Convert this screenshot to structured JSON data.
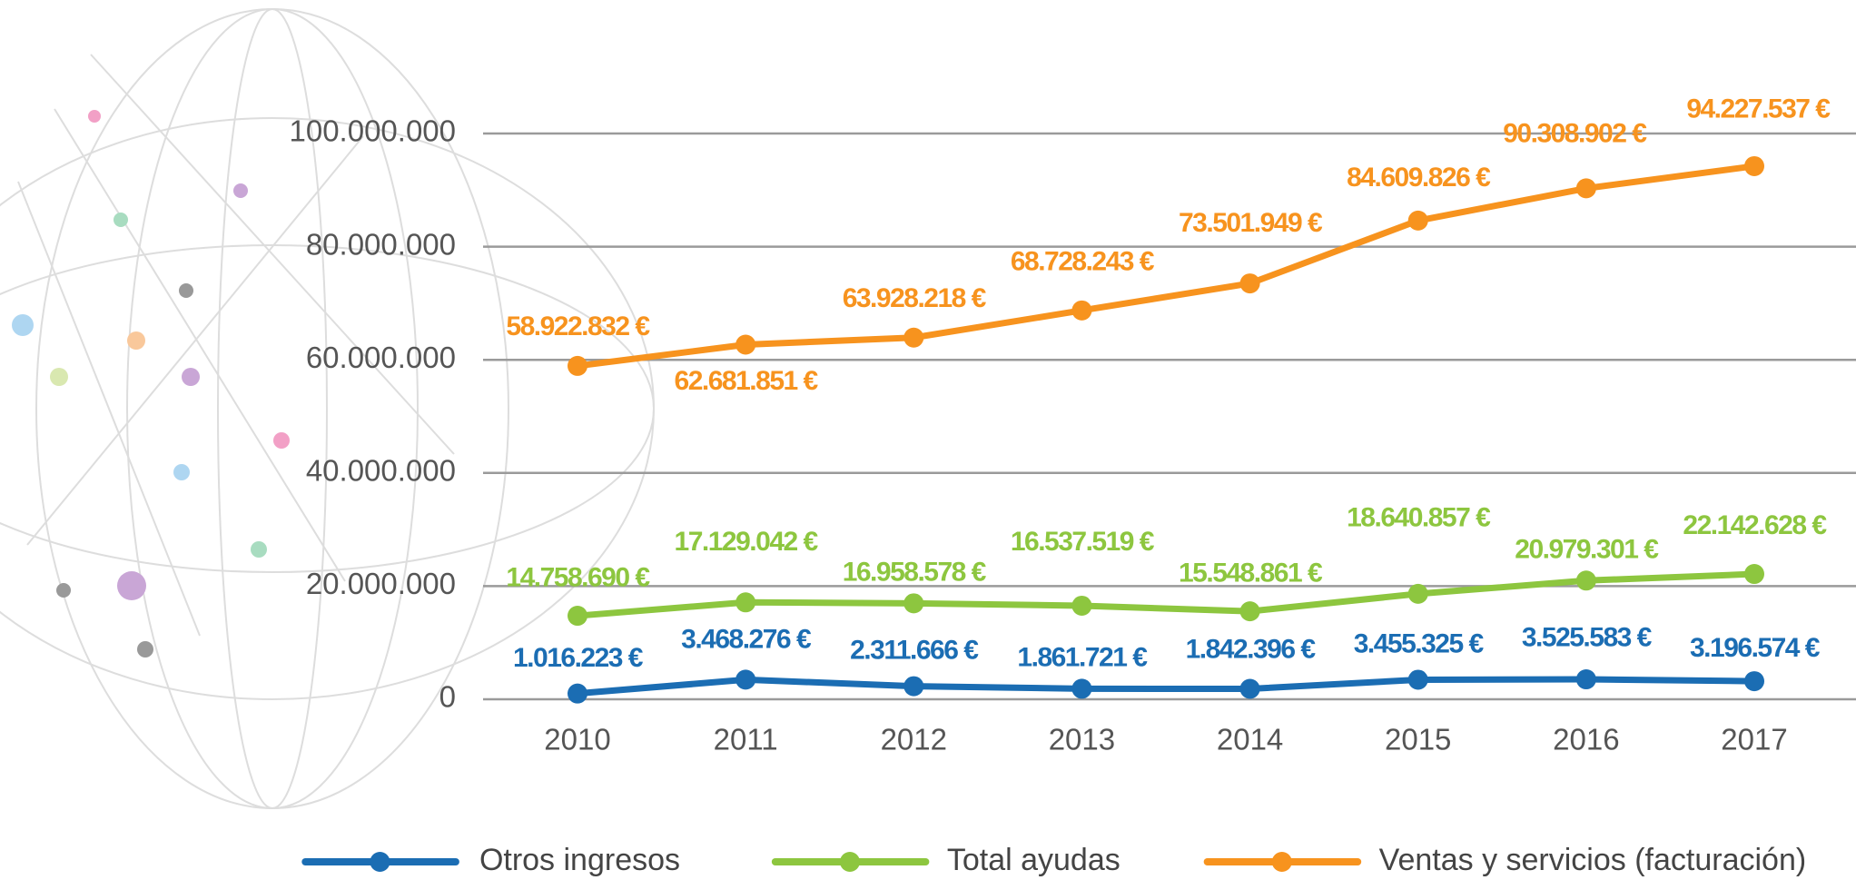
{
  "chart_data": {
    "type": "line",
    "categories": [
      "2010",
      "2011",
      "2012",
      "2013",
      "2014",
      "2015",
      "2016",
      "2017"
    ],
    "series": [
      {
        "name": "Otros ingresos",
        "color": "#1b6db3",
        "values": [
          1016223,
          3468276,
          2311666,
          1861721,
          1842396,
          3455325,
          3525583,
          3196574
        ],
        "value_labels": [
          "1.016.223 €",
          "3.468.276 €",
          "2.311.666 €",
          "1.861.721 €",
          "1.842.396 €",
          "3.455.325 €",
          "3.525.583 €",
          "3.196.574 €"
        ]
      },
      {
        "name": "Total ayudas",
        "color": "#8dc63f",
        "values": [
          14758690,
          17129042,
          16958578,
          16537519,
          15548861,
          18640857,
          20979301,
          22142628
        ],
        "value_labels": [
          "14.758.690 €",
          "17.129.042 €",
          "16.958.578 €",
          "16.537.519 €",
          "15.548.861 €",
          "18.640.857 €",
          "20.979.301 €",
          "22.142.628 €"
        ]
      },
      {
        "name": "Ventas y servicios (facturación)",
        "color": "#f7931e",
        "values": [
          58922832,
          62681851,
          63928218,
          68728243,
          73501949,
          84609826,
          90308902,
          94227537
        ],
        "value_labels": [
          "58.922.832 €",
          "62.681.851 €",
          "63.928.218 €",
          "68.728.243 €",
          "73.501.949 €",
          "84.609.826 €",
          "90.308.902 €",
          "94.227.537 €"
        ]
      }
    ],
    "ylim": [
      0,
      100000000
    ],
    "yticks": [
      0,
      {
        "value": 20000000,
        "label": "20.000.000"
      },
      {
        "value": 40000000,
        "label": "40.000.000"
      },
      {
        "value": 60000000,
        "label": "60.000.000"
      },
      {
        "value": 80000000,
        "label": "80.000.000"
      },
      {
        "value": 100000000,
        "label": "100.000.000"
      }
    ],
    "grid": true,
    "legend": "bottom"
  }
}
